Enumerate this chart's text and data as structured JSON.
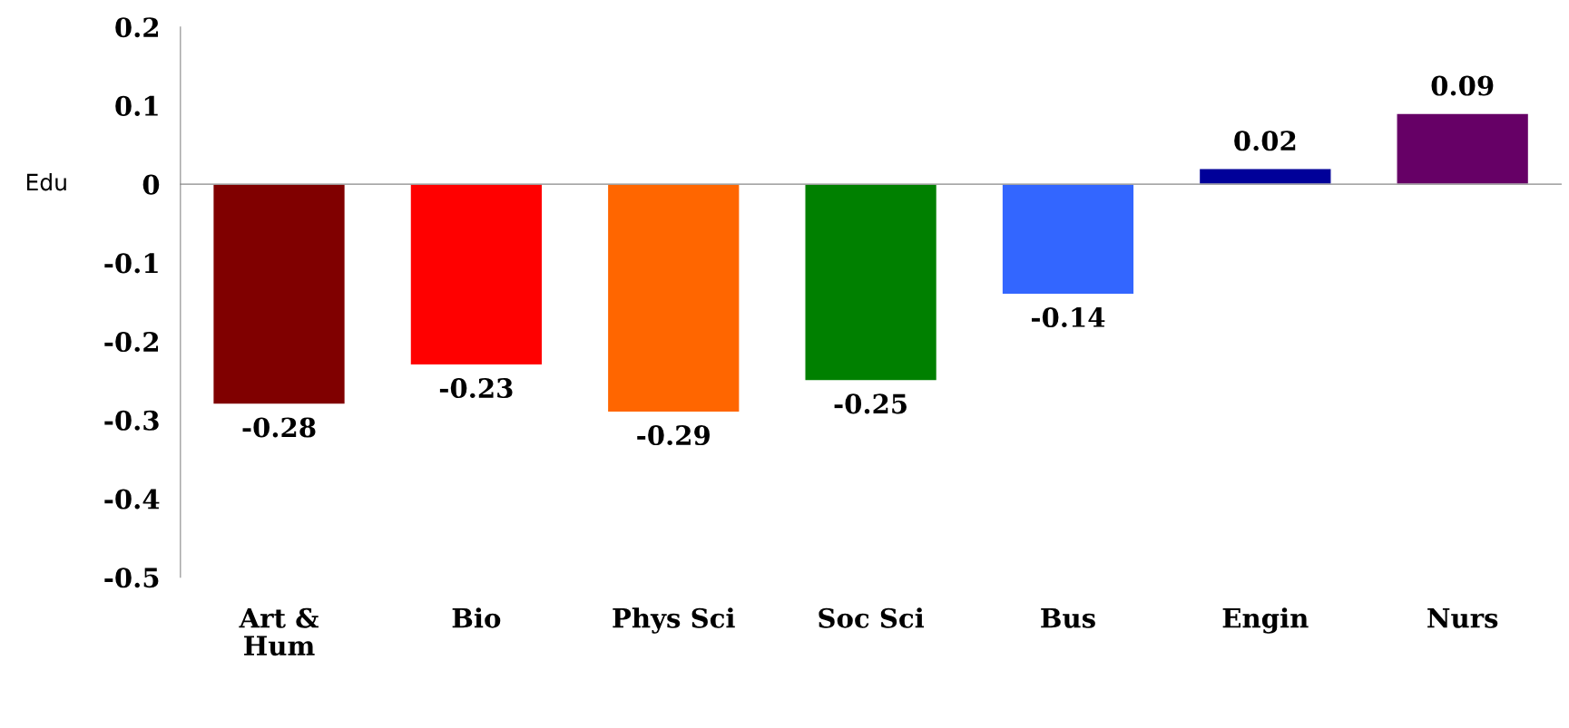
{
  "chart_data": {
    "type": "bar",
    "categories": [
      "Art &\nHum",
      "Bio",
      "Phys Sci",
      "Soc Sci",
      "Bus",
      "Engin",
      "Nurs"
    ],
    "values": [
      -0.28,
      -0.23,
      -0.29,
      -0.25,
      -0.14,
      0.02,
      0.09
    ],
    "colors": [
      "#800000",
      "#ff0000",
      "#ff6600",
      "#008000",
      "#3366ff",
      "#000099",
      "#660066"
    ],
    "ylim": [
      -0.5,
      0.2
    ],
    "yticks": [
      -0.5,
      -0.4,
      -0.3,
      -0.2,
      -0.1,
      0,
      0.1,
      0.2
    ],
    "annotations": [
      "Edu"
    ],
    "data_labels": true,
    "legend": false
  }
}
